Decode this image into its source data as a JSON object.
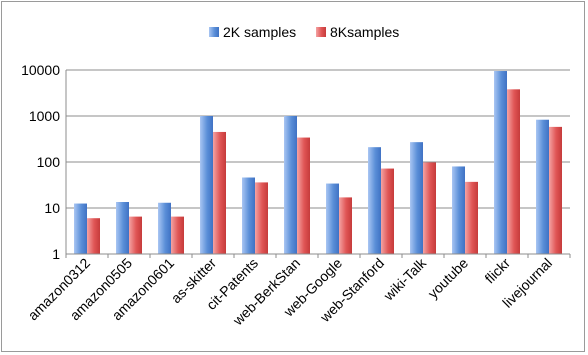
{
  "chart_data": {
    "type": "bar",
    "yscale": "log",
    "ylim": [
      1,
      10000
    ],
    "yticks": [
      "1",
      "10",
      "100",
      "1000",
      "10000"
    ],
    "grid": "horizontal",
    "legend_position": "top",
    "categories": [
      "amazon0312",
      "amazon0505",
      "amazon0601",
      "as-skitter",
      "cit-Patents",
      "web-BerkStan",
      "web-Google",
      "web-Stanford",
      "wiki-Talk",
      "youtube",
      "flickr",
      "livejournal"
    ],
    "series": [
      {
        "name": "2K samples",
        "color": "#5b8fd8",
        "values": [
          12.5,
          13.5,
          13,
          1000,
          46,
          1000,
          34,
          210,
          270,
          80,
          9500,
          830
        ]
      },
      {
        "name": "8Ksamples",
        "color": "#e05555",
        "values": [
          6,
          6.5,
          6.5,
          450,
          36,
          340,
          17,
          72,
          98,
          37,
          3800,
          580
        ]
      }
    ]
  }
}
